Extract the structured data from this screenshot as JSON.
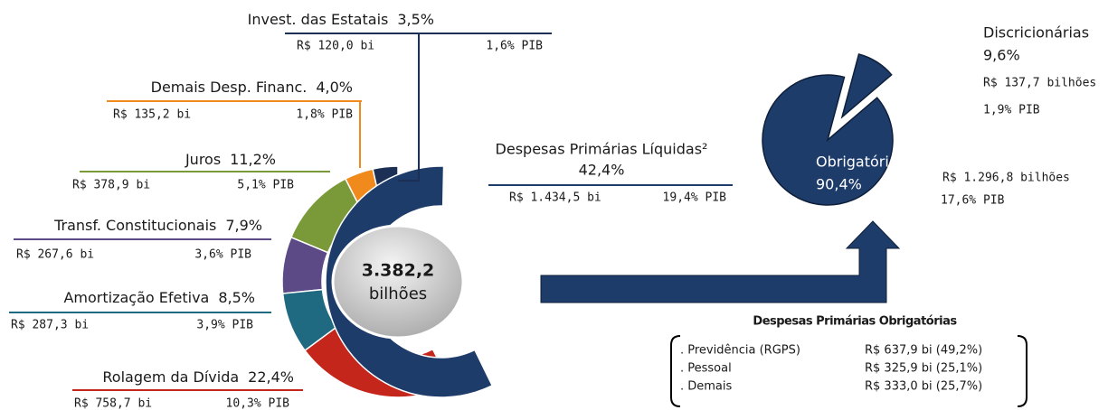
{
  "chart_data": [
    {
      "type": "donut",
      "center_label": [
        "3.382,2",
        "bilhões"
      ],
      "categories": [
        "Invest. das Estatais",
        "Demais Desp. Financ.",
        "Juros",
        "Transf. Constitucionais",
        "Amortização Efetiva",
        "Rolagem da Dívida",
        "Despesas Primárias Líquidas²"
      ],
      "values": [
        3.5,
        4.0,
        11.2,
        7.9,
        8.5,
        22.4,
        42.4
      ],
      "value_labels": [
        "3,5%",
        "4,0%",
        "11,2%",
        "7,9%",
        "8,5%",
        "22,4%",
        "42,4%"
      ],
      "amounts": [
        "R$ 120,0 bi",
        "R$ 135,2 bi",
        "R$ 378,9 bi",
        "R$ 267,6 bi",
        "R$ 287,3 bi",
        "R$ 758,7 bi",
        "R$ 1.434,5 bi"
      ],
      "pib": [
        "1,6% PIB",
        "1,8% PIB",
        "5,1% PIB",
        "3,6% PIB",
        "3,9% PIB",
        "10,3% PIB",
        "19,4% PIB"
      ],
      "colors": [
        "#1c2f55",
        "#f08a1c",
        "#7a9a3a",
        "#5b4a86",
        "#1f6a80",
        "#c4261b",
        "#1e3c6a"
      ]
    },
    {
      "type": "pie",
      "categories": [
        "Discricionárias",
        "Obrigatórias"
      ],
      "values": [
        9.6,
        90.4
      ],
      "value_labels": [
        "9,6%",
        "90,4%"
      ],
      "amounts": [
        "R$ 137,7 bilhões",
        "R$ 1.296,8 bilhões"
      ],
      "pib": [
        "1,9% PIB",
        "17,6% PIB"
      ],
      "colors": [
        "#1e3c6a",
        "#1e3c6a"
      ]
    }
  ],
  "box": {
    "title": "Despesas Primárias Obrigatórias",
    "rows": [
      [
        ". Previdência (RGPS)",
        "R$ 637,9 bi (49,2%)"
      ],
      [
        ". Pessoal",
        "R$ 325,9 bi (25,1%)"
      ],
      [
        ". Demais",
        "R$ 333,0 bi (25,7%)"
      ]
    ]
  }
}
